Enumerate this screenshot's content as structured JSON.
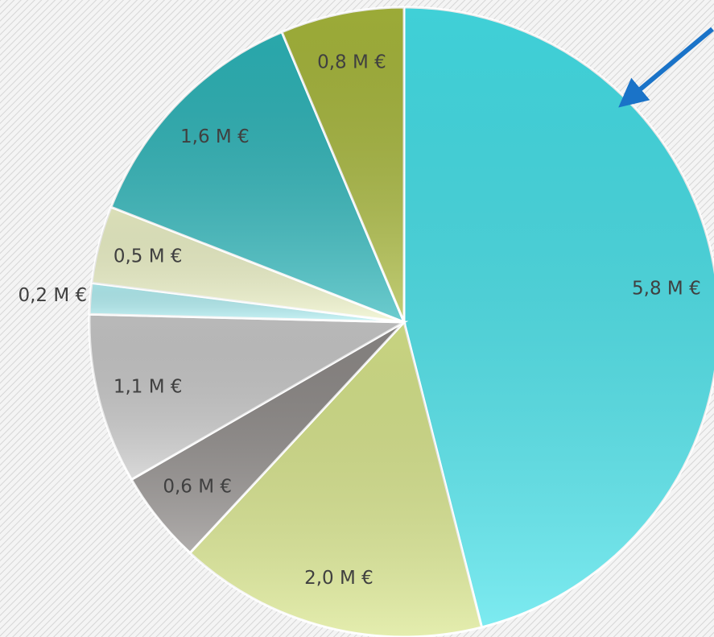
{
  "chart_data": {
    "type": "pie",
    "values": [
      5.8,
      2.0,
      0.6,
      1.1,
      0.2,
      0.5,
      1.6,
      0.8
    ],
    "value_labels": [
      "5,8 M €",
      "2,0 M €",
      "0,6 M €",
      "1,1 M €",
      "0,2 M €",
      "0,5 M €",
      "1,6 M €",
      "0,8 M €"
    ],
    "colors": [
      "#45e2ea",
      "#d9e68c",
      "#8f8b89",
      "#c9c9c9",
      "#b4f1f5",
      "#eef3c8",
      "#2db6ba",
      "#a9b93c"
    ]
  }
}
